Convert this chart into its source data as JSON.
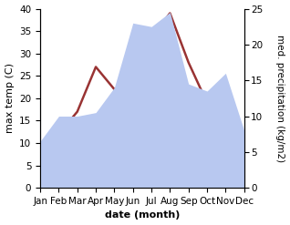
{
  "months": [
    "Jan",
    "Feb",
    "Mar",
    "Apr",
    "May",
    "Jun",
    "Jul",
    "Aug",
    "Sep",
    "Oct",
    "Nov",
    "Dec"
  ],
  "max_temp": [
    8.5,
    12.0,
    17.0,
    27.0,
    22.0,
    21.5,
    33.5,
    39.0,
    28.0,
    19.0,
    14.0,
    8.5
  ],
  "precipitation": [
    6.5,
    10.0,
    10.0,
    10.5,
    14.0,
    23.0,
    22.5,
    24.5,
    14.5,
    13.5,
    16.0,
    8.0
  ],
  "temp_color": "#993333",
  "precip_fill_color": "#b8c8f0",
  "precip_ylim": [
    0,
    25
  ],
  "temp_ylim": [
    0,
    40
  ],
  "xlabel": "date (month)",
  "ylabel_left": "max temp (C)",
  "ylabel_right": "med. precipitation (kg/m2)",
  "label_fontsize": 8,
  "tick_fontsize": 7.5,
  "line_width": 1.8
}
